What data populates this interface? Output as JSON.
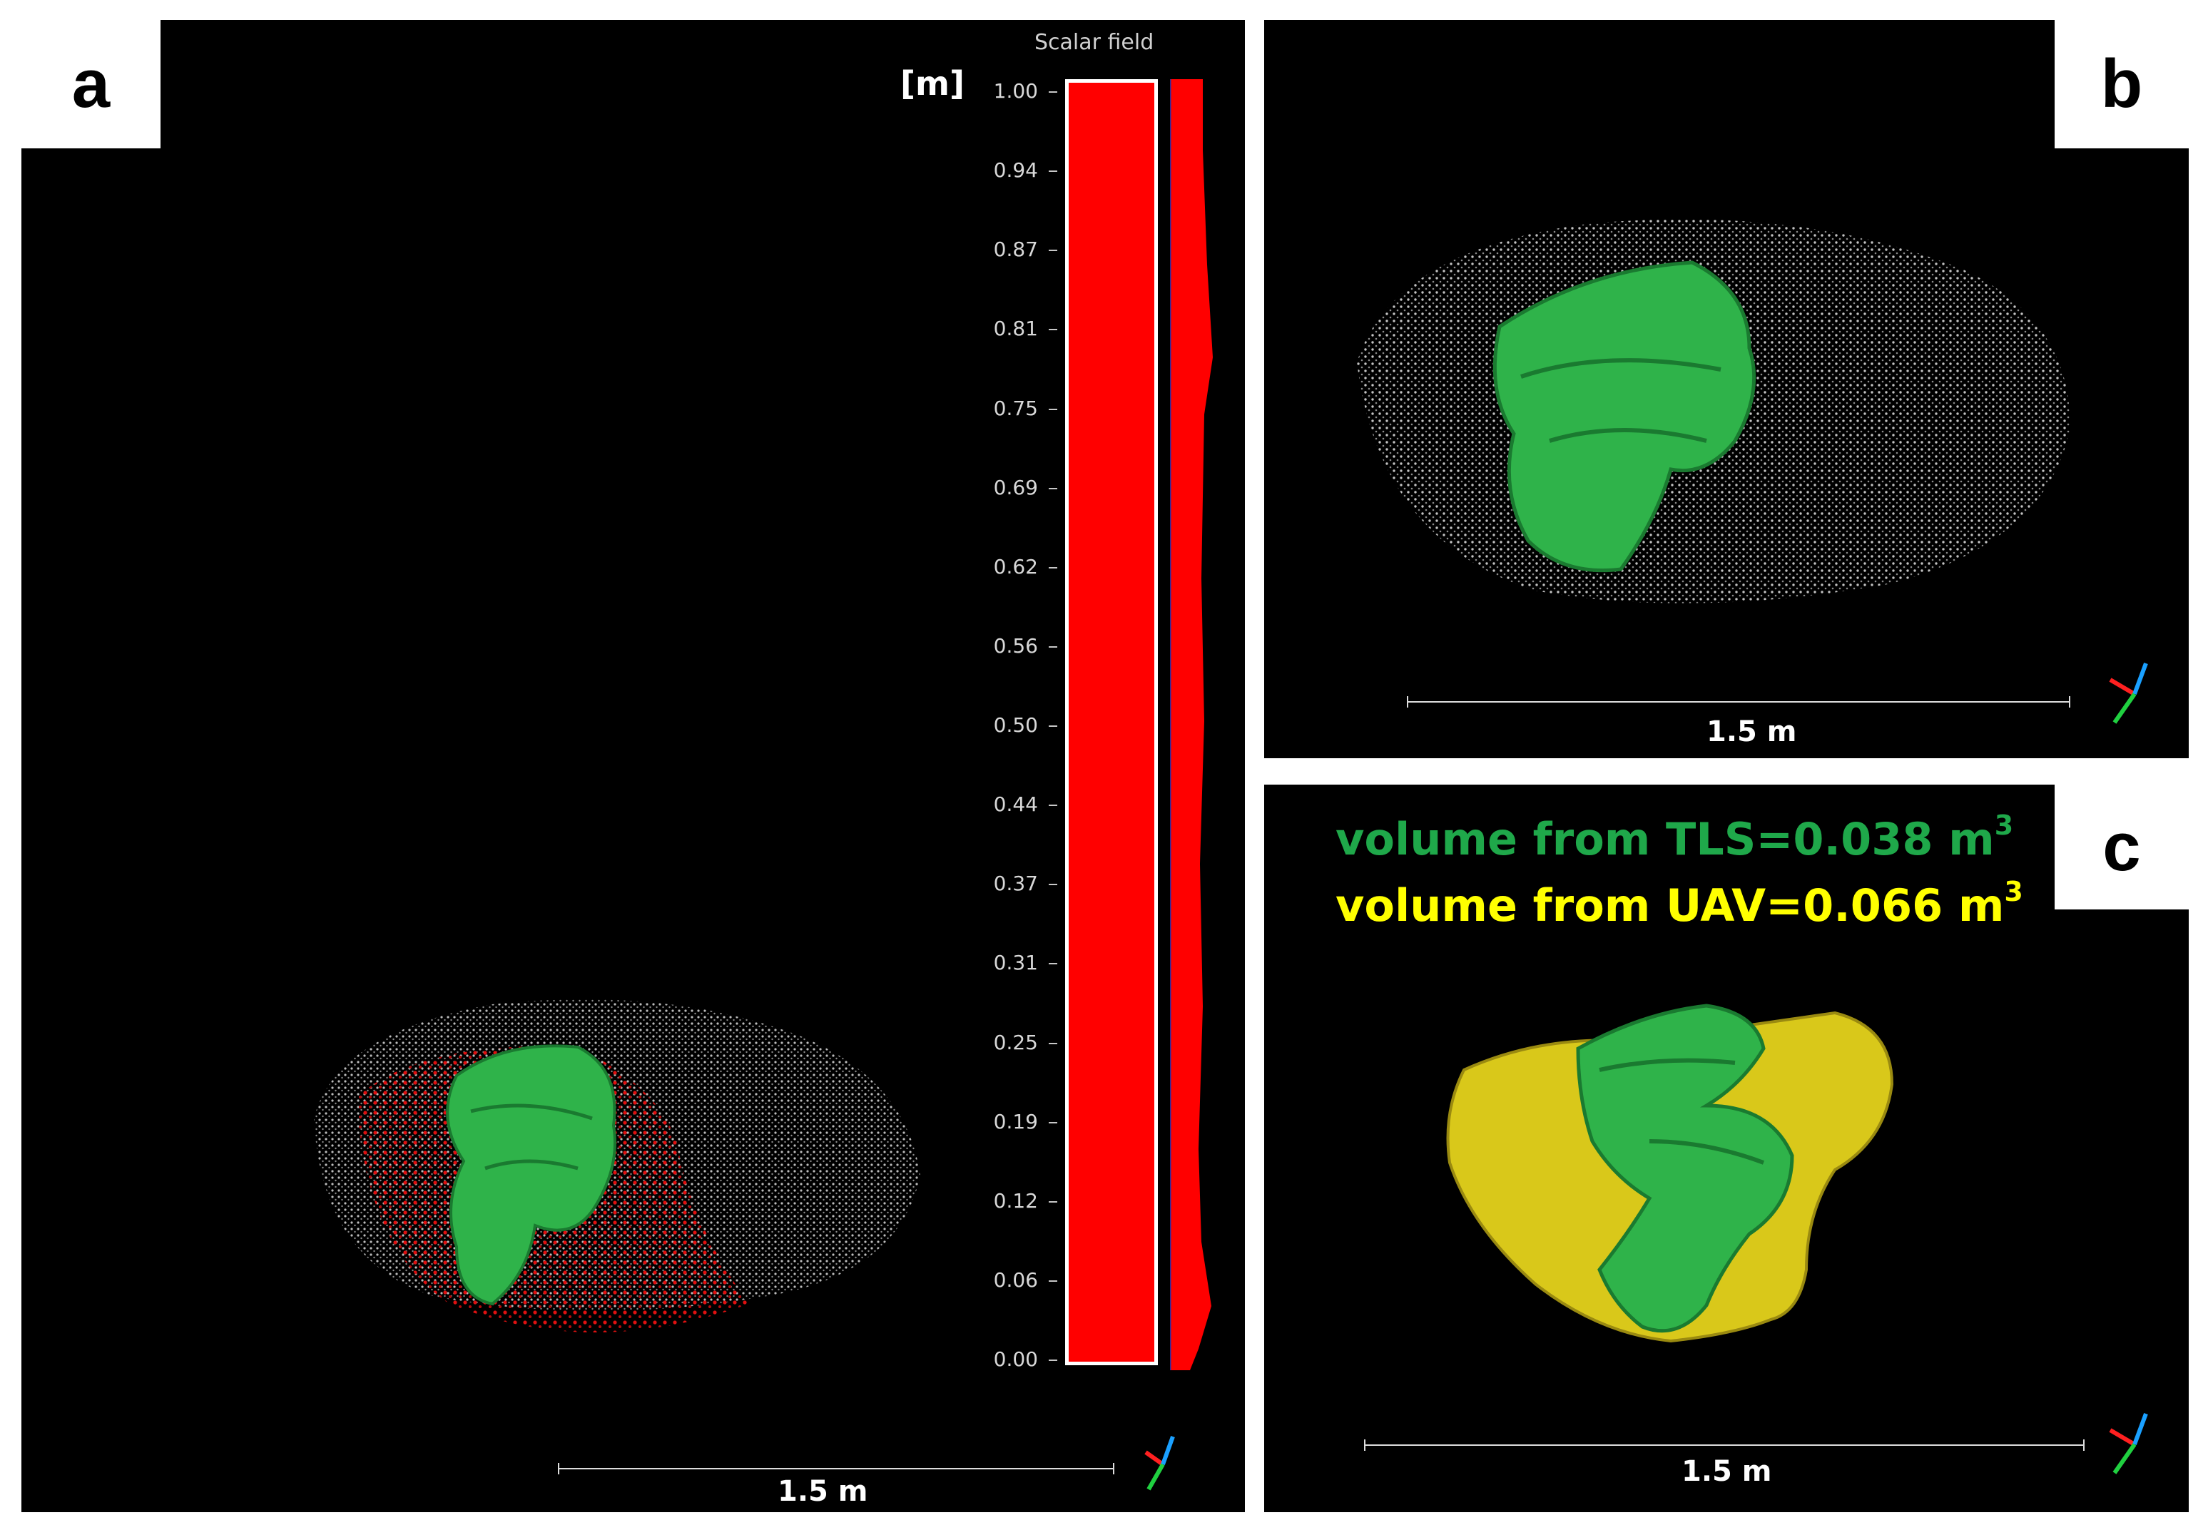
{
  "panels": {
    "a": {
      "label": "a",
      "scalar_field": {
        "title": "Scalar field",
        "unit": "[m]",
        "ticks": [
          "1.00",
          "0.94",
          "0.87",
          "0.81",
          "0.75",
          "0.69",
          "0.62",
          "0.56",
          "0.50",
          "0.44",
          "0.37",
          "0.31",
          "0.25",
          "0.19",
          "0.12",
          "0.06",
          "0.00"
        ],
        "bar_color": "#ff0000"
      },
      "scale_bar": "1.5 m"
    },
    "b": {
      "label": "b",
      "scale_bar": "1.5 m"
    },
    "c": {
      "label": "c",
      "volume_tls": {
        "text": "volume from TLS=0.038 m",
        "sup": "3",
        "color": "#1fa84a"
      },
      "volume_uav": {
        "text": "volume from UAV=0.066 m",
        "sup": "3",
        "color": "#ffff00"
      },
      "scale_bar": "1.5 m"
    }
  },
  "colors": {
    "mesh_green": "#2fb34a",
    "uav_yellow": "#d9c81a",
    "points_white": "#cfcfcf",
    "points_red": "#e01010"
  },
  "icons": [
    "axis-triad-icon"
  ]
}
